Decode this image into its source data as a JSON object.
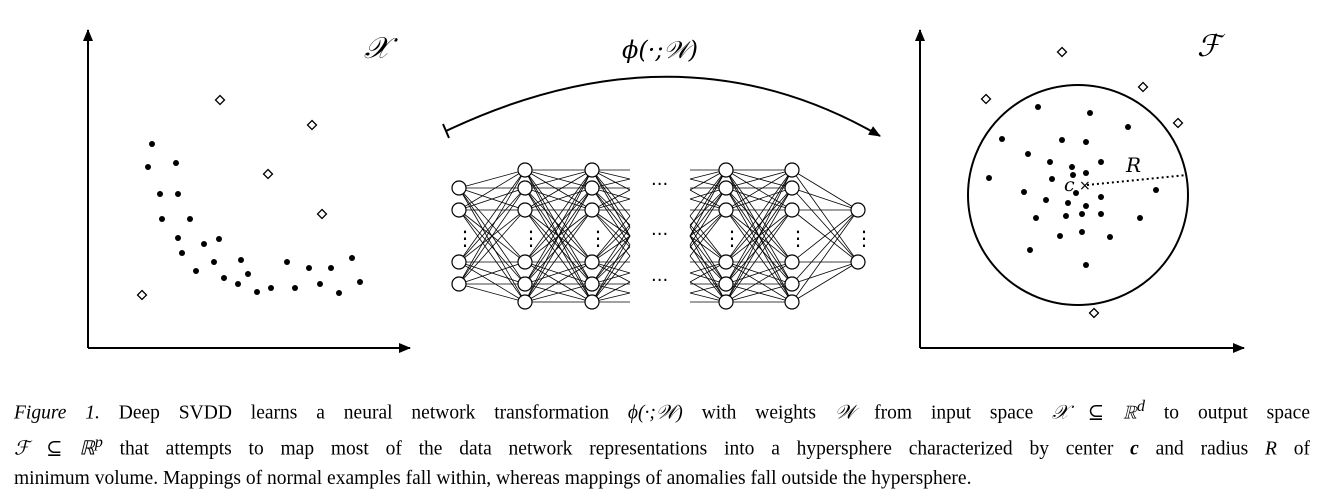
{
  "figure": {
    "left_space_label": "𝒳",
    "right_space_label": "ℱ",
    "mapping_label": "ϕ(·;𝒲)",
    "center_label": "c",
    "center_marker": "×",
    "radius_label": "R",
    "ellipsis": "···",
    "vertical_ellipsis": "⋮",
    "colors": {
      "ink": "#000000",
      "background": "#ffffff"
    },
    "marker_types": {
      "normal": "filled-dot",
      "anomaly": "hollow-diamond"
    }
  },
  "caption": {
    "fig_label": "Figure 1.",
    "line1_a": " Deep SVDD learns a neural network transformation ",
    "phi_w": "ϕ(·;𝒲)",
    "line1_b": " with weights ",
    "w": "𝒲",
    "line1_c": " from input space ",
    "x_in_rd": "𝒳 ⊆ ℝ",
    "d": "d",
    "line1_d": " to output space",
    "f_in_rp": "ℱ ⊆ ℝ",
    "p": "p",
    "line2_a": " that attempts to map most of the data network representations into a hypersphere characterized by center ",
    "c": "c",
    "line2_b": " and radius ",
    "r": "R",
    "line2_c": " of",
    "line3": "minimum volume. Mappings of normal examples fall within, whereas mappings of anomalies fall outside the hypersphere."
  }
}
